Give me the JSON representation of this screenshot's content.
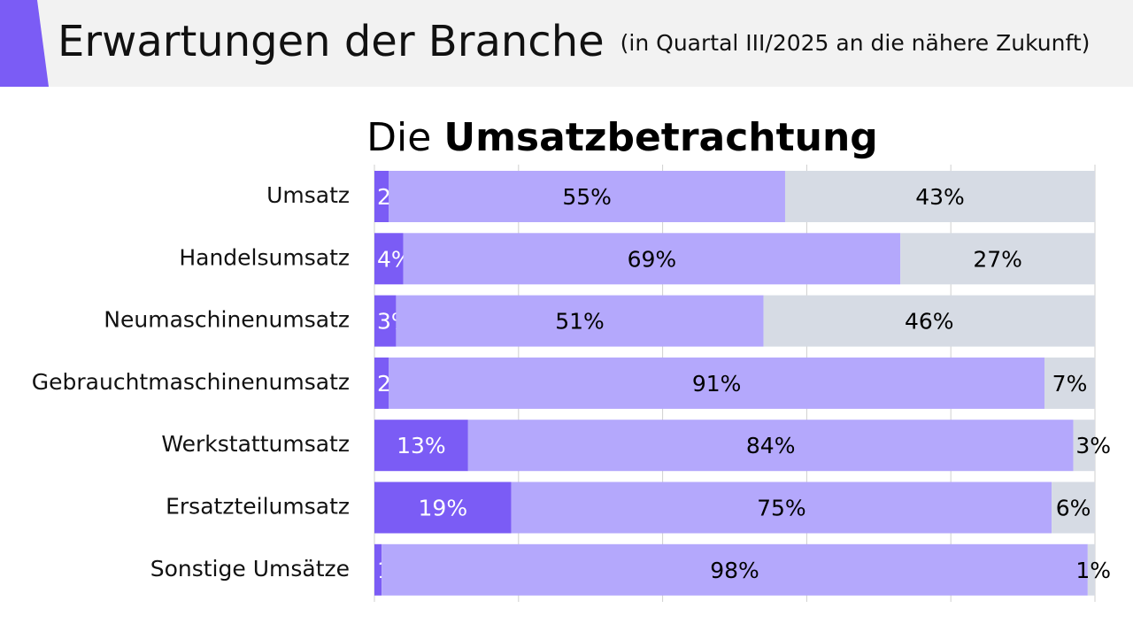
{
  "header": {
    "title": "Erwartungen der Branche",
    "subtitle": "(in Quartal III/2025 an die nähere Zukunft)"
  },
  "chart_data": {
    "type": "stacked-bar-horizontal",
    "title": [
      "Die",
      "Umsatzbetrachtung"
    ],
    "categories": [
      "Umsatz",
      "Handelsumsatz",
      "Neumaschinenumsatz",
      "Gebrauchtmaschinenumsatz",
      "Werkstattumsatz",
      "Ersatzteilumsatz",
      "Sonstige Umsätze"
    ],
    "series": [
      {
        "color": "#7b5cf5",
        "values": [
          2,
          4,
          3,
          2,
          13,
          19,
          1
        ],
        "value_labels": [
          "2%",
          "4%",
          "3%",
          "2%",
          "13%",
          "19%",
          "1%"
        ]
      },
      {
        "color": "#b4a8fc",
        "values": [
          55,
          69,
          51,
          91,
          84,
          75,
          98
        ],
        "value_labels": [
          "55%",
          "69%",
          "51%",
          "91%",
          "84%",
          "75%",
          "98%"
        ]
      },
      {
        "color": "#d6dbe4",
        "values": [
          43,
          27,
          46,
          7,
          3,
          6,
          1
        ],
        "value_labels": [
          "43%",
          "27%",
          "46%",
          "7%",
          "3%",
          "6%",
          "1%"
        ]
      }
    ],
    "xlim": [
      0,
      100
    ],
    "xticks": [
      0,
      20,
      40,
      60,
      80,
      100
    ],
    "grid": true
  }
}
